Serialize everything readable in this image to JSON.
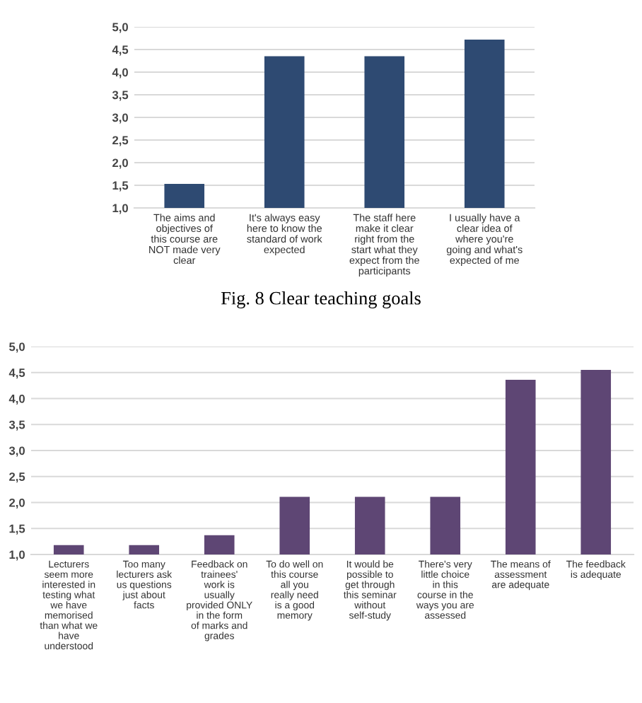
{
  "chart_data": [
    {
      "type": "bar",
      "categories": [
        "The aims and objectives of this course are NOT made very clear",
        "It's always easy here to know the standard of work expected",
        "The staff here make it clear right from the start what they expect from the participants",
        "I usually have a clear idea of where you're going and what's expected of me"
      ],
      "values": [
        1.53,
        4.35,
        4.35,
        4.72
      ],
      "color": "#2e4a72",
      "ylim": [
        1.0,
        5.0
      ],
      "yticks": [
        {
          "value": 1.0,
          "label": "1,0"
        },
        {
          "value": 1.5,
          "label": "1,5"
        },
        {
          "value": 2.0,
          "label": "2,0"
        },
        {
          "value": 2.5,
          "label": "2,5"
        },
        {
          "value": 3.0,
          "label": "3,0"
        },
        {
          "value": 3.5,
          "label": "3,5"
        },
        {
          "value": 4.0,
          "label": "4,0"
        },
        {
          "value": 4.5,
          "label": "4,5"
        },
        {
          "value": 5.0,
          "label": "5,0"
        }
      ],
      "grid": "y",
      "annotations": [
        "Fig. 8 Clear teaching goals"
      ]
    },
    {
      "type": "bar",
      "categories": [
        "Lecturers seem more interested in testing what we have memorised than what we have understood",
        "Too many lecturers ask us questions just about facts",
        "Feedback on trainees' work is usually provided ONLY in the form of marks and grades",
        "To do well on this course all you really need is a good memory",
        "It would be possible to get through this seminar without self-study",
        "There's very little choice in this course in the ways you are assessed",
        "The means of assessment are adequate",
        "The feedback is adequate"
      ],
      "values": [
        1.18,
        1.18,
        1.37,
        2.11,
        2.11,
        2.11,
        4.36,
        4.55
      ],
      "color": "#5e4674",
      "ylim": [
        1.0,
        5.0
      ],
      "yticks": [
        {
          "value": 1.0,
          "label": "1,0"
        },
        {
          "value": 1.5,
          "label": "1,5"
        },
        {
          "value": 2.0,
          "label": "2,0"
        },
        {
          "value": 2.5,
          "label": "2,5"
        },
        {
          "value": 3.0,
          "label": "3,0"
        },
        {
          "value": 3.5,
          "label": "3,5"
        },
        {
          "value": 4.0,
          "label": "4,0"
        },
        {
          "value": 4.5,
          "label": "4,5"
        },
        {
          "value": 5.0,
          "label": "5,0"
        }
      ],
      "grid": "y"
    }
  ]
}
